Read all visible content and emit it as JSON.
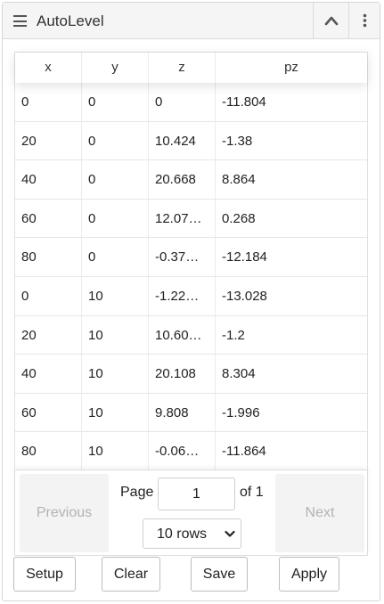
{
  "widget": {
    "title": "AutoLevel",
    "icons": {
      "menu": "hamburger-icon",
      "collapse": "chevron-up-icon",
      "more": "kebab-vertical-icon"
    }
  },
  "table": {
    "columns": [
      "x",
      "y",
      "z",
      "pz"
    ],
    "rows": [
      [
        "0",
        "0",
        "0",
        "-11.804"
      ],
      [
        "20",
        "0",
        "10.424",
        "-1.38"
      ],
      [
        "40",
        "0",
        "20.668",
        "8.864"
      ],
      [
        "60",
        "0",
        "12.07…",
        "0.268"
      ],
      [
        "80",
        "0",
        "-0.37…",
        "-12.184"
      ],
      [
        "0",
        "10",
        "-1.22…",
        "-13.028"
      ],
      [
        "20",
        "10",
        "10.60…",
        "-1.2"
      ],
      [
        "40",
        "10",
        "20.108",
        "8.304"
      ],
      [
        "60",
        "10",
        "9.808",
        "-1.996"
      ],
      [
        "80",
        "10",
        "-0.06…",
        "-11.864"
      ]
    ]
  },
  "pagination": {
    "previous": "Previous",
    "next": "Next",
    "page_label": "Page",
    "page_value": "1",
    "of_label": "of 1",
    "rows_option": "10 rows"
  },
  "actions": {
    "setup": "Setup",
    "clear": "Clear",
    "save": "Save",
    "apply": "Apply"
  }
}
